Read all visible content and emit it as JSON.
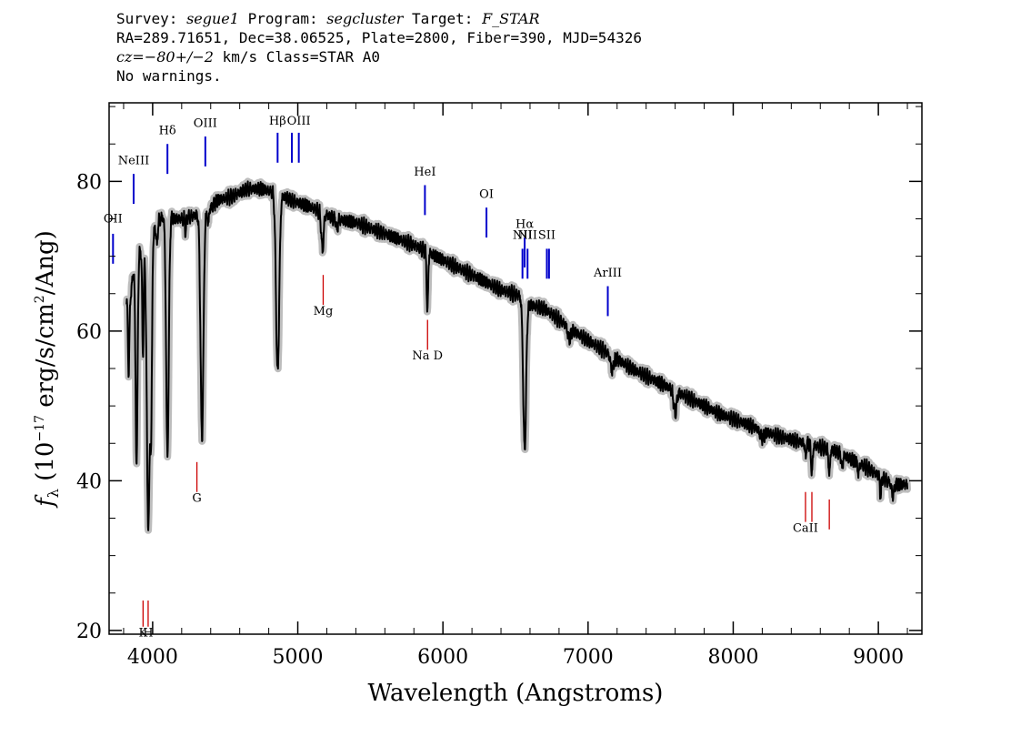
{
  "header": {
    "survey_label": "Survey:",
    "survey_value": "segue1",
    "program_label": "Program:",
    "program_value": "segcluster",
    "target_label": "Target:",
    "target_value": "F_STAR",
    "line2": "RA=289.71651, Dec=38.06525, Plate=2800, Fiber=390, MJD=54326",
    "cz_label": "cz=",
    "cz_value": "−80+/−2",
    "cz_rest": " km/s Class=STAR A0",
    "line4": "No warnings."
  },
  "chart_data": {
    "type": "line",
    "xlabel": "Wavelength (Angstroms)",
    "ylabel_parts": {
      "symbol": "f",
      "subscript": "λ",
      "open": " (10",
      "exponent": "−17",
      "rest": " erg/s/cm",
      "exponent2": "2",
      "close": "/Ang)"
    },
    "xlim": [
      3700,
      9300
    ],
    "ylim": [
      19.5,
      90.5
    ],
    "x_ticks": [
      4000,
      5000,
      6000,
      7000,
      8000,
      9000
    ],
    "y_ticks": [
      20,
      40,
      60,
      80
    ],
    "x_tick_labels": [
      "4000",
      "5000",
      "6000",
      "7000",
      "8000",
      "9000"
    ],
    "y_tick_labels": [
      "20",
      "40",
      "60",
      "80"
    ],
    "x_minor_step": 200,
    "y_minor_step": 5,
    "colors": {
      "spectrum": "#000000",
      "error_band": "#bdbdbd",
      "emission": "#0000cc",
      "absorption": "#cc0000"
    },
    "continuum": [
      [
        3820,
        64
      ],
      [
        3850,
        65
      ],
      [
        3880,
        70
      ],
      [
        3930,
        71
      ],
      [
        3980,
        72
      ],
      [
        4050,
        75
      ],
      [
        4100,
        75.5
      ],
      [
        4150,
        75
      ],
      [
        4200,
        75
      ],
      [
        4300,
        75.5
      ],
      [
        4380,
        76
      ],
      [
        4450,
        77.5
      ],
      [
        4550,
        78
      ],
      [
        4650,
        79
      ],
      [
        4750,
        79
      ],
      [
        4850,
        78.5
      ],
      [
        4950,
        77.5
      ],
      [
        5100,
        76.5
      ],
      [
        5250,
        75
      ],
      [
        5400,
        74.5
      ],
      [
        5600,
        73
      ],
      [
        5800,
        71.5
      ],
      [
        6000,
        69.5
      ],
      [
        6200,
        67.5
      ],
      [
        6400,
        65.5
      ],
      [
        6520,
        64.8
      ],
      [
        6600,
        63.5
      ],
      [
        6700,
        63
      ],
      [
        6900,
        60
      ],
      [
        7100,
        57.5
      ],
      [
        7300,
        55
      ],
      [
        7500,
        53
      ],
      [
        7700,
        51
      ],
      [
        7900,
        49
      ],
      [
        8100,
        47.5
      ],
      [
        8300,
        46
      ],
      [
        8500,
        45
      ],
      [
        8700,
        44
      ],
      [
        8900,
        42
      ],
      [
        9100,
        39.5
      ],
      [
        9200,
        39.5
      ]
    ],
    "absorption_features": [
      {
        "center": 3835,
        "width": 5,
        "depth": 10
      },
      {
        "center": 3889,
        "width": 7,
        "depth": 28
      },
      {
        "center": 3933,
        "width": 5,
        "depth": 14
      },
      {
        "center": 3970,
        "width": 10,
        "depth": 38
      },
      {
        "center": 3990,
        "width": 6,
        "depth": 22
      },
      {
        "center": 4030,
        "width": 4,
        "depth": 3
      },
      {
        "center": 4102,
        "width": 9,
        "depth": 32
      },
      {
        "center": 4227,
        "width": 4,
        "depth": 2
      },
      {
        "center": 4340,
        "width": 10,
        "depth": 30
      },
      {
        "center": 4383,
        "width": 4,
        "depth": 2
      },
      {
        "center": 4861,
        "width": 11,
        "depth": 24
      },
      {
        "center": 5170,
        "width": 8,
        "depth": 5
      },
      {
        "center": 5270,
        "width": 5,
        "depth": 1.5
      },
      {
        "center": 5893,
        "width": 5,
        "depth": 8
      },
      {
        "center": 6563,
        "width": 10,
        "depth": 20
      },
      {
        "center": 6870,
        "width": 10,
        "depth": 1.5
      },
      {
        "center": 7165,
        "width": 10,
        "depth": 2
      },
      {
        "center": 7600,
        "width": 10,
        "depth": 3
      },
      {
        "center": 8200,
        "width": 15,
        "depth": 1
      },
      {
        "center": 8498,
        "width": 4,
        "depth": 2
      },
      {
        "center": 8542,
        "width": 5,
        "depth": 4
      },
      {
        "center": 8662,
        "width": 5,
        "depth": 3.5
      },
      {
        "center": 8750,
        "width": 5,
        "depth": 2
      },
      {
        "center": 8863,
        "width": 5,
        "depth": 1.5
      },
      {
        "center": 9015,
        "width": 5,
        "depth": 2.5
      },
      {
        "center": 9100,
        "width": 8,
        "depth": 1.5
      }
    ],
    "spectrum_range": [
      3820,
      9200
    ],
    "emission_lines": [
      {
        "name": "OII",
        "wave": 3727,
        "y_top": 73,
        "y_bot": 69,
        "label_y": 74.5
      },
      {
        "name": "NeIII",
        "wave": 3869,
        "y_top": 81,
        "y_bot": 77,
        "label_y": 82.3
      },
      {
        "name": "Hδ",
        "wave": 4102,
        "y_top": 85,
        "y_bot": 81,
        "label_y": 86.3
      },
      {
        "name": "OIII",
        "wave": 4363,
        "y_top": 86,
        "y_bot": 82,
        "label_y": 87.3
      },
      {
        "name": "Hβ",
        "wave": 4861,
        "y_top": 86.5,
        "y_bot": 82.5,
        "label_y": 87.6
      },
      {
        "name": "OIII",
        "wave": 4959,
        "y_top": 86.5,
        "y_bot": 82.5,
        "label_y": null
      },
      {
        "name": "OIII",
        "wave": 5007,
        "y_top": 86.5,
        "y_bot": 82.5,
        "label_y": 87.6
      },
      {
        "name": "HeI",
        "wave": 5876,
        "y_top": 79.5,
        "y_bot": 75.5,
        "label_y": 80.8
      },
      {
        "name": "OI",
        "wave": 6300,
        "y_top": 76.5,
        "y_bot": 72.5,
        "label_y": 77.8
      },
      {
        "name": "NII",
        "wave": 6548,
        "y_top": 71,
        "y_bot": 67,
        "label_y": 72.3
      },
      {
        "name": "Hα",
        "wave": 6563,
        "y_top": 72.5,
        "y_bot": 68.5,
        "label_y": 73.8
      },
      {
        "name": "NII",
        "wave": 6583,
        "y_top": 71,
        "y_bot": 67,
        "label_y": 72.3
      },
      {
        "name": "SII",
        "wave": 6716,
        "y_top": 71,
        "y_bot": 67,
        "label_y": 72.3
      },
      {
        "name": "SII",
        "wave": 6731,
        "y_top": 71,
        "y_bot": 67,
        "label_y": null
      },
      {
        "name": "ArIII",
        "wave": 7136,
        "y_top": 66,
        "y_bot": 62,
        "label_y": 67.3
      }
    ],
    "absorption_lines": [
      {
        "name": "K",
        "wave": 3934,
        "y_top": 24,
        "y_bot": 20.5,
        "label_y": 19.2
      },
      {
        "name": "H",
        "wave": 3969,
        "y_top": 24,
        "y_bot": 20.5,
        "label_y": 19.2
      },
      {
        "name": "G",
        "wave": 4305,
        "y_top": 42.5,
        "y_bot": 38.5,
        "label_y": 37.2
      },
      {
        "name": "Mg",
        "wave": 5175,
        "y_top": 67.5,
        "y_bot": 63.5,
        "label_y": 62.2
      },
      {
        "name": "Na D",
        "wave": 5894,
        "y_top": 61.5,
        "y_bot": 57.5,
        "label_y": 56.2
      },
      {
        "name": "CaII",
        "wave": 8498,
        "y_top": 38.5,
        "y_bot": 34.5,
        "label_y": 33.2
      },
      {
        "name": "CaII",
        "wave": 8542,
        "y_top": 38.5,
        "y_bot": 34.5,
        "label_y": null
      },
      {
        "name": "CaII",
        "wave": 8662,
        "y_top": 37.5,
        "y_bot": 33.5,
        "label_y": null
      }
    ]
  }
}
